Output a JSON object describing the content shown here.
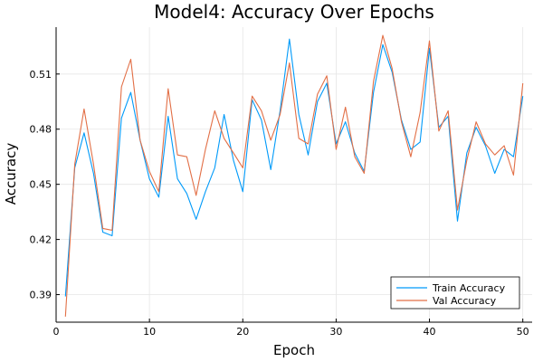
{
  "chart_data": {
    "type": "line",
    "title": "Model4: Accuracy Over Epochs",
    "xlabel": "Epoch",
    "ylabel": "Accuracy",
    "xlim": [
      0,
      51
    ],
    "ylim": [
      0.375,
      0.5355
    ],
    "xticks": [
      0,
      10,
      20,
      30,
      40,
      50
    ],
    "yticks": [
      0.39,
      0.42,
      0.45,
      0.48,
      0.51
    ],
    "ytick_labels": [
      "0.39",
      "0.42",
      "0.45",
      "0.48",
      "0.51"
    ],
    "grid": true,
    "legend_position": "bottom-right",
    "x": [
      1,
      2,
      3,
      4,
      5,
      6,
      7,
      8,
      9,
      10,
      11,
      12,
      13,
      14,
      15,
      16,
      17,
      18,
      19,
      20,
      21,
      22,
      23,
      24,
      25,
      26,
      27,
      28,
      29,
      30,
      31,
      32,
      33,
      34,
      35,
      36,
      37,
      38,
      39,
      40,
      41,
      42,
      43,
      44,
      45,
      46,
      47,
      48,
      49,
      50
    ],
    "series": [
      {
        "name": "Train Accuracy",
        "color": "#009af9",
        "values": [
          0.389,
          0.459,
          0.478,
          0.456,
          0.424,
          0.422,
          0.486,
          0.5,
          0.474,
          0.453,
          0.443,
          0.487,
          0.453,
          0.445,
          0.431,
          0.446,
          0.459,
          0.488,
          0.463,
          0.446,
          0.496,
          0.485,
          0.458,
          0.49,
          0.529,
          0.488,
          0.466,
          0.495,
          0.505,
          0.472,
          0.484,
          0.467,
          0.457,
          0.5,
          0.526,
          0.511,
          0.485,
          0.469,
          0.473,
          0.524,
          0.481,
          0.487,
          0.43,
          0.467,
          0.481,
          0.471,
          0.456,
          0.469,
          0.465,
          0.498
        ]
      },
      {
        "name": "Val Accuracy",
        "color": "#e26f46",
        "values": [
          0.378,
          0.461,
          0.491,
          0.461,
          0.426,
          0.425,
          0.503,
          0.518,
          0.474,
          0.457,
          0.446,
          0.502,
          0.466,
          0.465,
          0.444,
          0.469,
          0.49,
          0.475,
          0.467,
          0.459,
          0.498,
          0.49,
          0.474,
          0.488,
          0.516,
          0.475,
          0.472,
          0.499,
          0.509,
          0.469,
          0.492,
          0.465,
          0.456,
          0.506,
          0.531,
          0.513,
          0.484,
          0.465,
          0.489,
          0.528,
          0.479,
          0.49,
          0.436,
          0.463,
          0.484,
          0.472,
          0.466,
          0.471,
          0.455,
          0.505
        ]
      }
    ]
  }
}
